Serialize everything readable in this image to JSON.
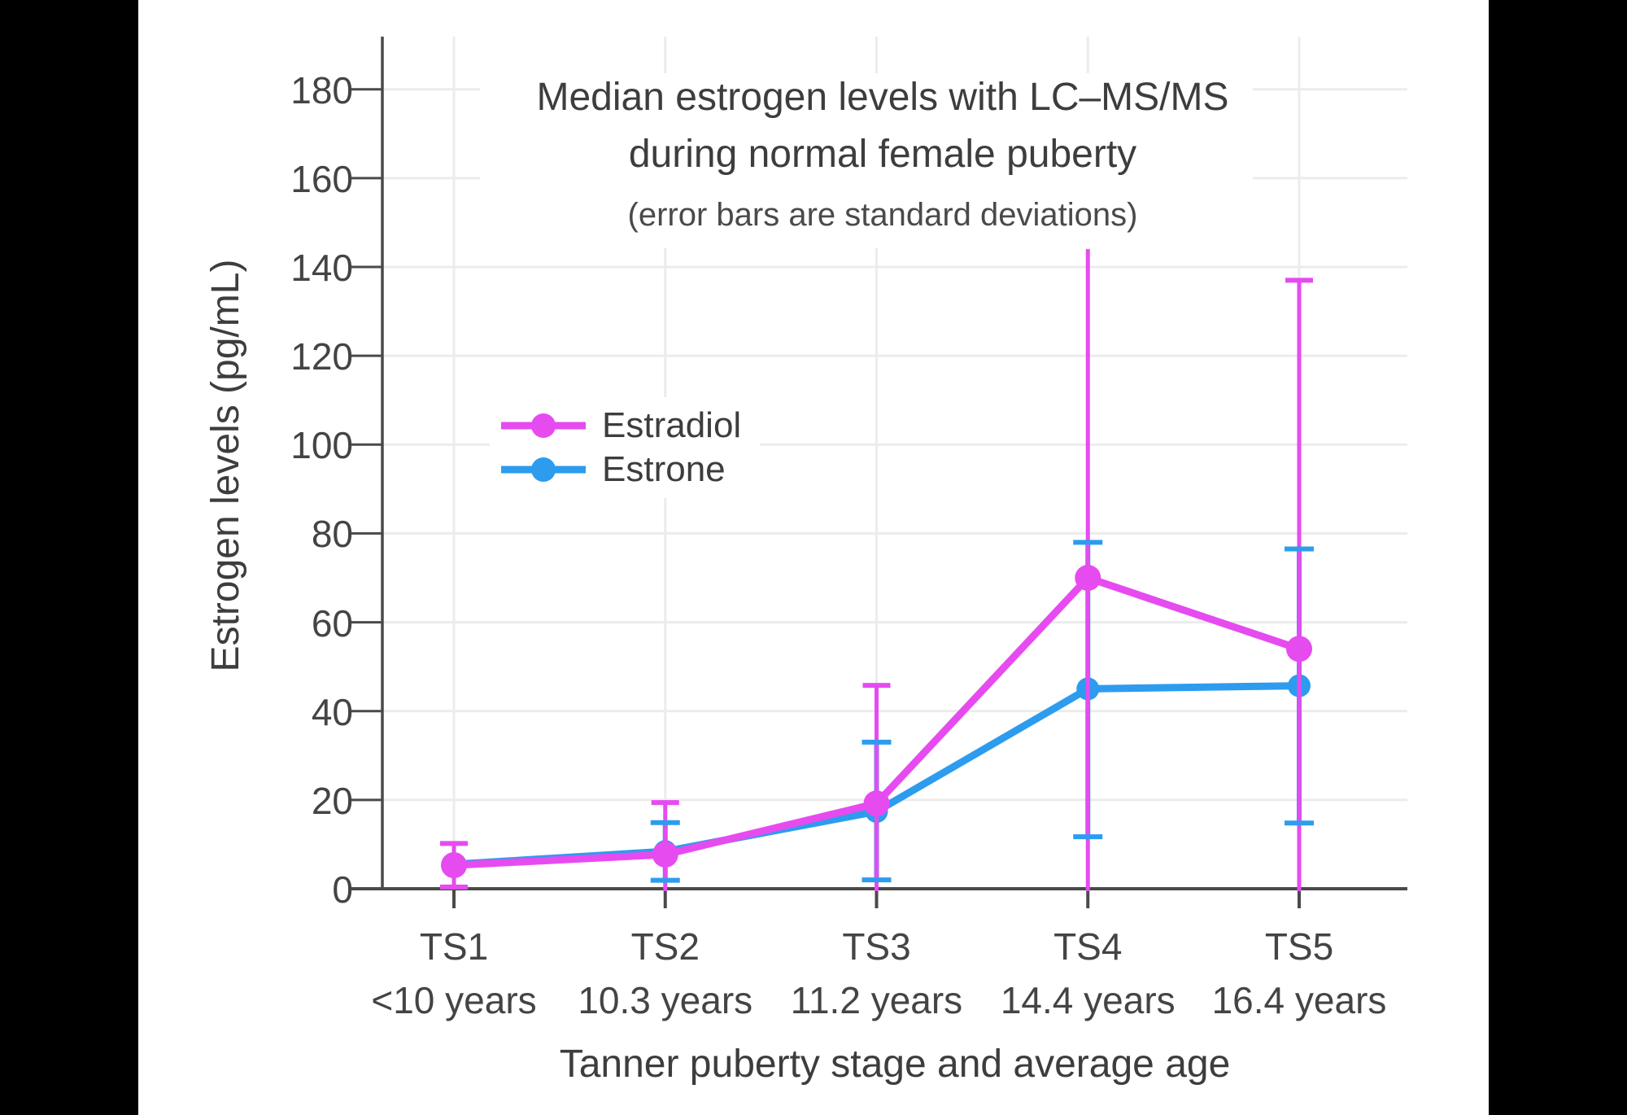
{
  "page": {
    "background": "#000000",
    "canvas_background": "#ffffff"
  },
  "chart_data": {
    "type": "line",
    "title": "Median estrogen levels with LC–MS/MS",
    "title_line2": "during normal female puberty",
    "subtitle": "(error bars are standard deviations)",
    "xlabel": "Tanner puberty stage and average age",
    "ylabel": "Estrogen levels (pg/mL)",
    "categories": [
      "TS1",
      "TS2",
      "TS3",
      "TS4",
      "TS5"
    ],
    "category_ages": [
      "<10 years",
      "10.3 years",
      "11.2 years",
      "14.4 years",
      "16.4 years"
    ],
    "yticks": [
      0,
      20,
      40,
      60,
      80,
      100,
      120,
      140,
      160,
      180
    ],
    "ylim": [
      0,
      191
    ],
    "grid": true,
    "legend_position": "inside-upper-left",
    "colors": {
      "grid": "#ececec",
      "axis": "#4a4a4a",
      "text": "#3d3d3d",
      "tick_text": "#444444"
    },
    "series": [
      {
        "name": "Estradiol",
        "color": "#E64BF0",
        "values": [
          5.3,
          7.7,
          19.2,
          70,
          54
        ],
        "error_high": [
          10.2,
          19.4,
          45.8,
          144,
          137
        ],
        "error_low": [
          0.4,
          -4,
          -7.5,
          -4,
          -29
        ],
        "top_cap": [
          true,
          true,
          true,
          false,
          true
        ],
        "bottom_cap": [
          true,
          false,
          false,
          false,
          false
        ]
      },
      {
        "name": "Estrone",
        "color": "#2D9CEE",
        "values": [
          5.5,
          8.4,
          17.4,
          45,
          45.7
        ],
        "error_high": [
          null,
          14.9,
          33,
          78,
          76.5
        ],
        "error_low": [
          null,
          1.9,
          2,
          11.7,
          14.8
        ],
        "top_cap": [
          false,
          true,
          true,
          true,
          true
        ],
        "bottom_cap": [
          false,
          true,
          true,
          true,
          true
        ]
      }
    ]
  }
}
